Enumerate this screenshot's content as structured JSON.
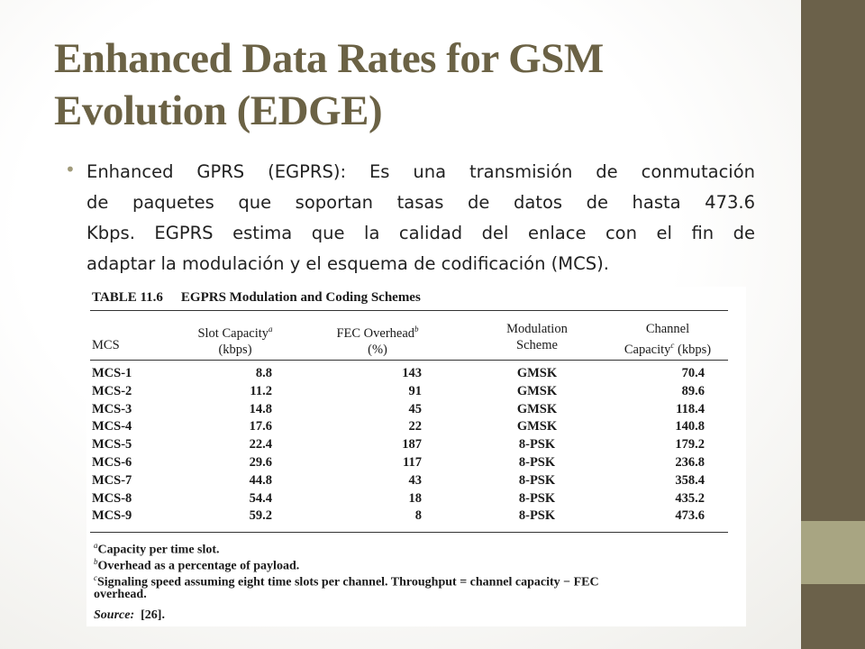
{
  "slide": {
    "title_line1": "Enhanced Data Rates for GSM",
    "title_line2": "Evolution (EDGE)",
    "bullet_lines": [
      "Enhanced GPRS (EGPRS): Es una transmisión de conmutación",
      "de  paquetes que soportan tasas de datos de hasta 473.6",
      "Kbps. EGPRS estima que la calidad del enlace con el fin de",
      "adaptar la modulación y el esquema de codificación (MCS)."
    ],
    "colors": {
      "title": "#6b6245",
      "sidebar_dark": "#6b614a",
      "sidebar_light": "#a8a582"
    }
  },
  "table": {
    "caption_number": "TABLE 11.6",
    "caption_title": "EGPRS Modulation and Coding Schemes",
    "headers": {
      "mcs": "MCS",
      "slot_line1": "Slot Capacity",
      "slot_sup": "a",
      "slot_line2": "(kbps)",
      "fec_line1": "FEC Overhead",
      "fec_sup": "b",
      "fec_line2": "(%)",
      "mod_line1": "Modulation",
      "mod_line2": "Scheme",
      "cap_line1": "Channel",
      "cap_line2a": "Capacity",
      "cap_sup": "c",
      "cap_line2b": " (kbps)"
    },
    "rows": [
      {
        "mcs": "MCS-1",
        "slot": "8.8",
        "fec": "143",
        "mod": "GMSK",
        "cap": "70.4"
      },
      {
        "mcs": "MCS-2",
        "slot": "11.2",
        "fec": "91",
        "mod": "GMSK",
        "cap": "89.6"
      },
      {
        "mcs": "MCS-3",
        "slot": "14.8",
        "fec": "45",
        "mod": "GMSK",
        "cap": "118.4"
      },
      {
        "mcs": "MCS-4",
        "slot": "17.6",
        "fec": "22",
        "mod": "GMSK",
        "cap": "140.8"
      },
      {
        "mcs": "MCS-5",
        "slot": "22.4",
        "fec": "187",
        "mod": "8-PSK",
        "cap": "179.2"
      },
      {
        "mcs": "MCS-6",
        "slot": "29.6",
        "fec": "117",
        "mod": "8-PSK",
        "cap": "236.8"
      },
      {
        "mcs": "MCS-7",
        "slot": "44.8",
        "fec": "43",
        "mod": "8-PSK",
        "cap": "358.4"
      },
      {
        "mcs": "MCS-8",
        "slot": "54.4",
        "fec": "18",
        "mod": "8-PSK",
        "cap": "435.2"
      },
      {
        "mcs": "MCS-9",
        "slot": "59.2",
        "fec": "8",
        "mod": "8-PSK",
        "cap": "473.6"
      }
    ],
    "footnotes": {
      "a_mark": "a",
      "a_text": "Capacity per time slot.",
      "b_mark": "b",
      "b_text": "Overhead as a percentage of payload.",
      "c_mark": "c",
      "c_text1": "Signaling speed assuming eight time slots per channel. Throughput = channel capacity − FEC",
      "c_text2": "overhead.",
      "source_label": "Source:",
      "source_value": "[26]."
    }
  }
}
